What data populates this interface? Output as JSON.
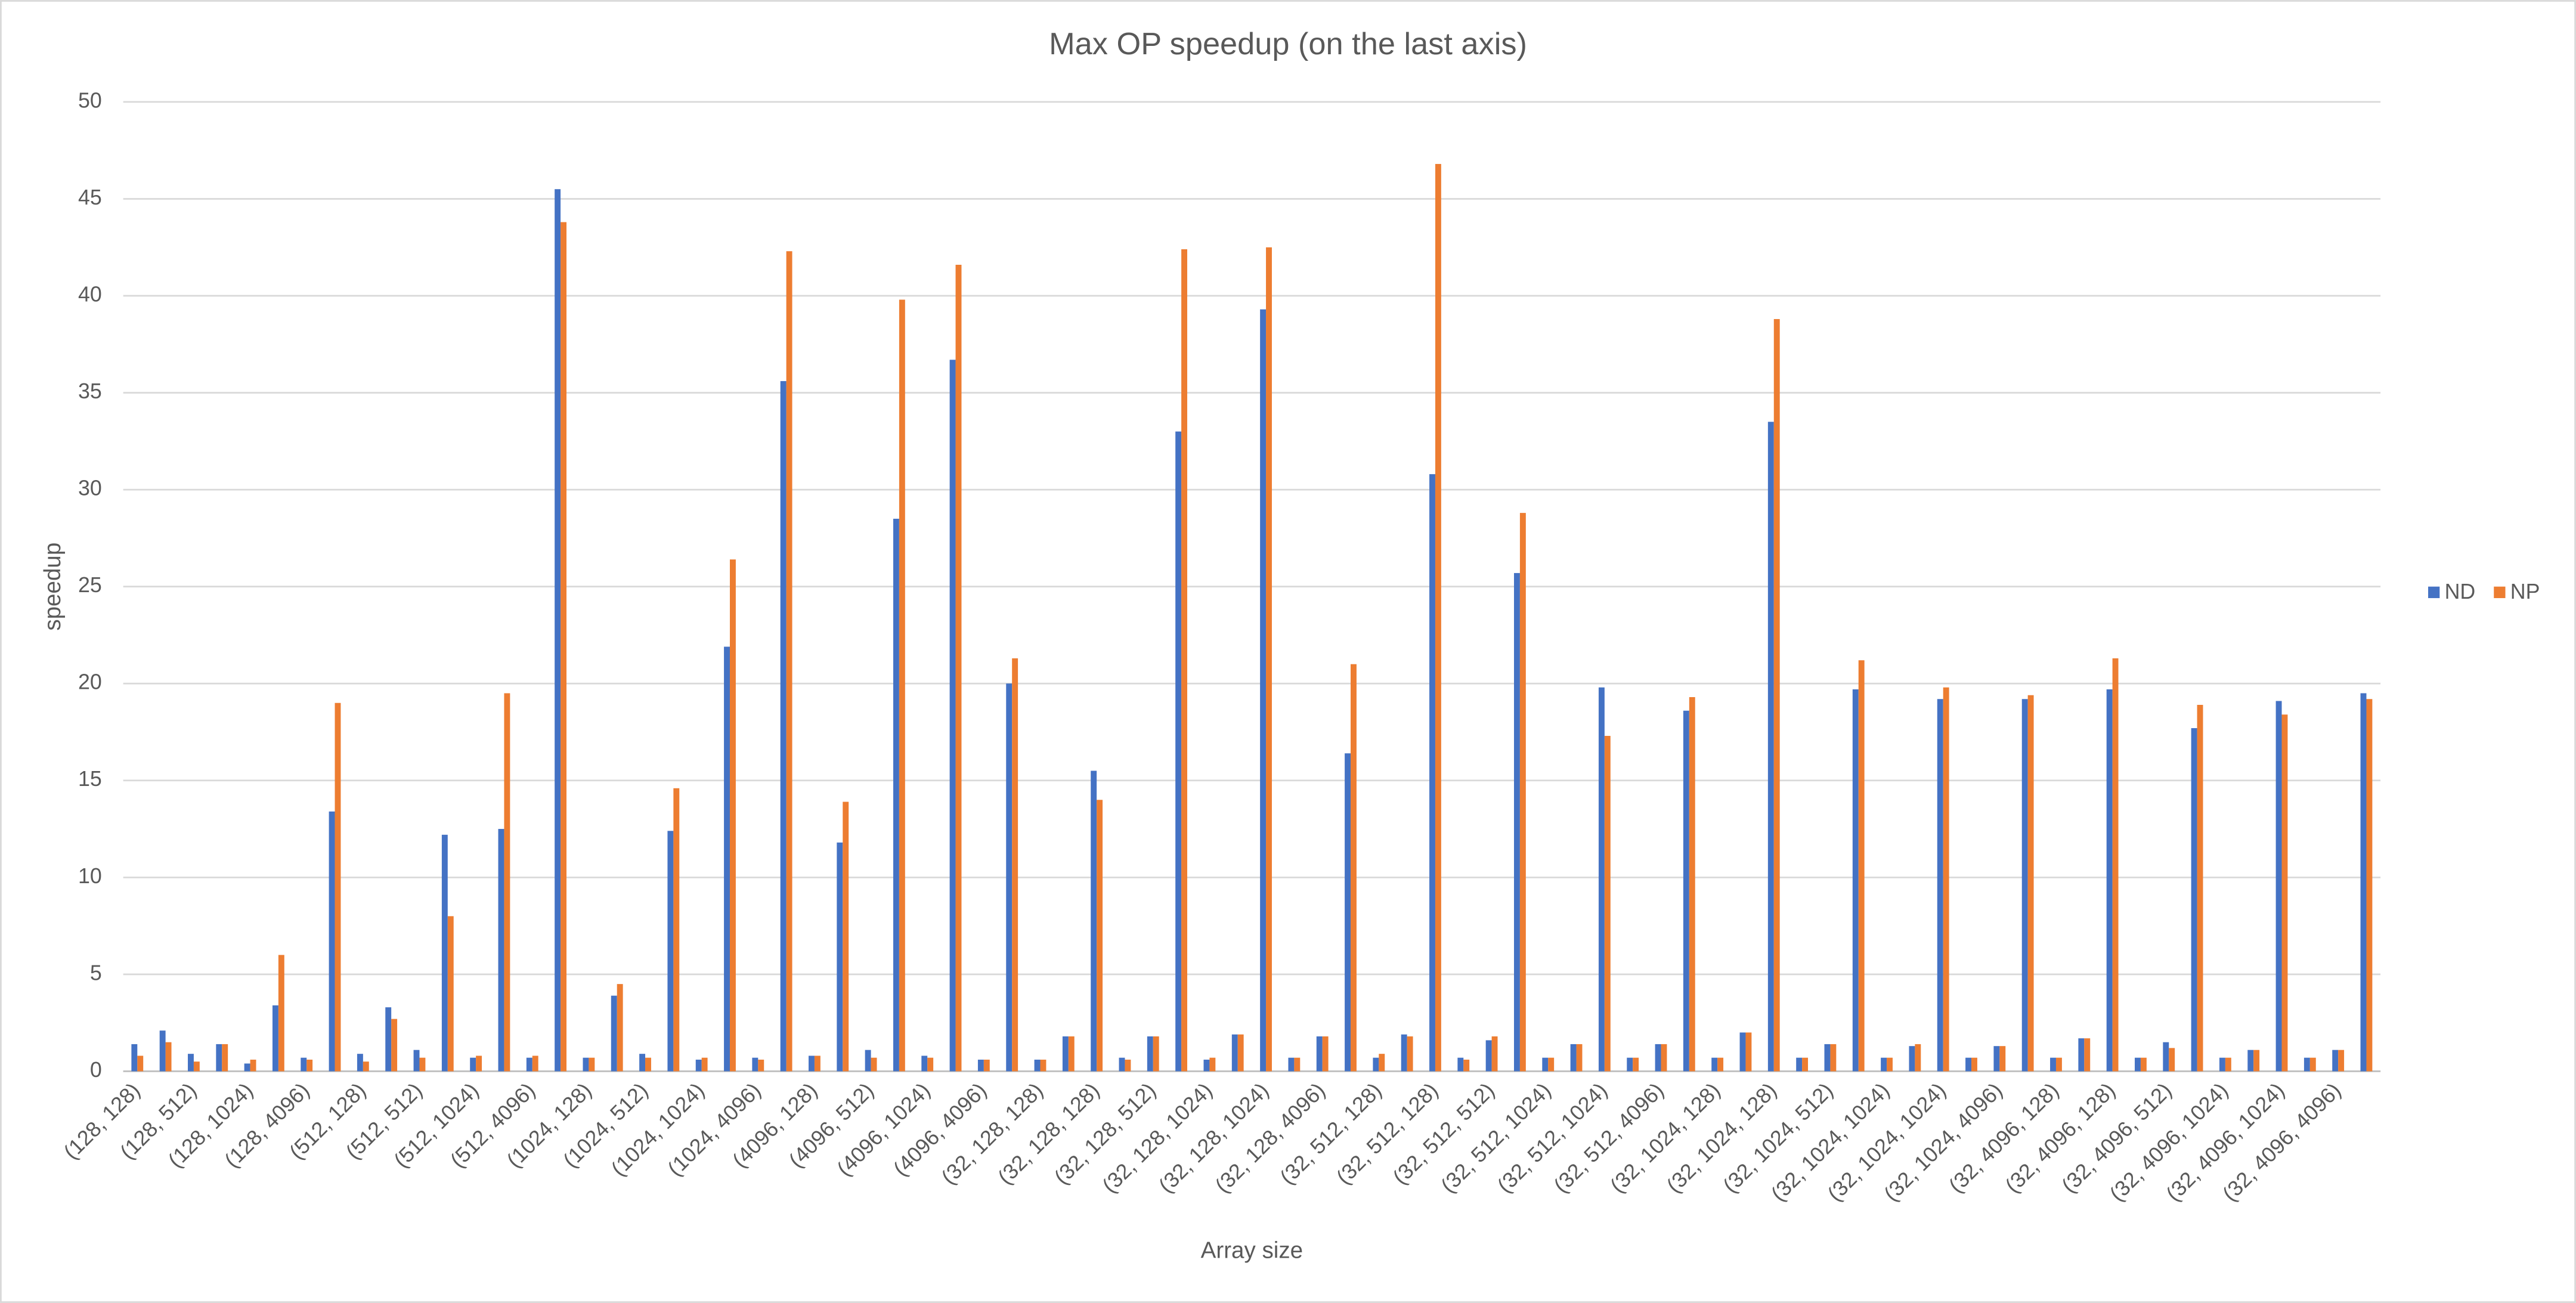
{
  "chart_data": {
    "type": "bar",
    "title": "Max OP speedup (on the last axis)",
    "x_label": "Array size",
    "y_label": "speedup",
    "categories": [
      "(128, 128)",
      null,
      "(128, 512)",
      null,
      "(128, 1024)",
      null,
      "(128, 4096)",
      null,
      "(512, 128)",
      null,
      "(512, 512)",
      null,
      "(512, 1024)",
      null,
      "(512, 4096)",
      null,
      "(1024, 128)",
      null,
      "(1024, 512)",
      null,
      "(1024, 1024)",
      null,
      "(1024, 4096)",
      null,
      "(4096, 128)",
      null,
      "(4096, 512)",
      null,
      "(4096, 1024)",
      null,
      "(4096, 4096)",
      null,
      "(32, 128, 128)",
      null,
      "(32, 128, 128)",
      null,
      "(32, 128, 512)",
      null,
      "(32, 128, 1024)",
      null,
      "(32, 128, 1024)",
      null,
      "(32, 128, 4096)",
      null,
      "(32, 512, 128)",
      null,
      "(32, 512, 128)",
      null,
      "(32, 512, 512)",
      null,
      "(32, 512, 1024)",
      null,
      "(32, 512, 1024)",
      null,
      "(32, 512, 4096)",
      null,
      "(32, 1024, 128)",
      null,
      "(32, 1024, 128)",
      null,
      "(32, 1024, 512)",
      null,
      "(32, 1024, 1024)",
      null,
      "(32, 1024, 1024)",
      null,
      "(32, 1024, 4096)",
      null,
      "(32, 4096, 128)",
      null,
      "(32, 4096, 128)",
      null,
      "(32, 4096, 512)",
      null,
      "(32, 4096, 1024)",
      null,
      "(32, 4096, 1024)",
      null,
      "(32, 4096, 4096)",
      null
    ],
    "series": [
      {
        "name": "ND",
        "color": "#4472c4",
        "values": [
          1.4,
          2.1,
          0.9,
          1.4,
          0.4,
          3.4,
          0.7,
          13.4,
          0.9,
          3.3,
          1.1,
          12.2,
          0.7,
          12.5,
          0.7,
          45.5,
          0.7,
          3.9,
          0.9,
          12.4,
          0.6,
          21.9,
          0.7,
          35.6,
          0.8,
          11.8,
          1.1,
          28.5,
          0.8,
          36.7,
          0.6,
          20.0,
          0.6,
          1.8,
          15.5,
          0.7,
          1.8,
          33.0,
          0.6,
          1.9,
          39.3,
          0.7,
          1.8,
          16.4,
          0.7,
          1.9,
          30.8,
          0.7,
          1.6,
          25.7,
          0.7,
          1.4,
          19.8,
          0.7,
          1.4,
          18.6,
          0.7,
          2.0,
          33.5,
          0.7,
          1.4,
          19.7,
          0.7,
          1.3,
          19.2,
          0.7,
          1.3,
          19.2,
          0.7,
          1.7,
          19.7,
          0.7,
          1.5,
          17.7,
          0.7,
          1.1,
          19.1,
          0.7,
          1.1,
          19.5
        ]
      },
      {
        "name": "NP",
        "color": "#ed7d31",
        "values": [
          0.8,
          1.5,
          0.5,
          1.4,
          0.6,
          6.0,
          0.6,
          19.0,
          0.5,
          2.7,
          0.7,
          8.0,
          0.8,
          19.5,
          0.8,
          43.8,
          0.7,
          4.5,
          0.7,
          14.6,
          0.7,
          26.4,
          0.6,
          42.3,
          0.8,
          13.9,
          0.7,
          39.8,
          0.7,
          41.6,
          0.6,
          21.3,
          0.6,
          1.8,
          14.0,
          0.6,
          1.8,
          42.4,
          0.7,
          1.9,
          42.5,
          0.7,
          1.8,
          21.0,
          0.9,
          1.8,
          46.8,
          0.6,
          1.8,
          28.8,
          0.7,
          1.4,
          17.3,
          0.7,
          1.4,
          19.3,
          0.7,
          2.0,
          38.8,
          0.7,
          1.4,
          21.2,
          0.7,
          1.4,
          19.8,
          0.7,
          1.3,
          19.4,
          0.7,
          1.7,
          21.3,
          0.7,
          1.2,
          18.9,
          0.7,
          1.1,
          18.4,
          0.7,
          1.1,
          19.2
        ]
      }
    ],
    "ylim": [
      0,
      50
    ],
    "yticks": [
      0,
      5,
      10,
      15,
      20,
      25,
      30,
      35,
      40,
      45,
      50
    ],
    "grid": true,
    "legend": "right"
  }
}
